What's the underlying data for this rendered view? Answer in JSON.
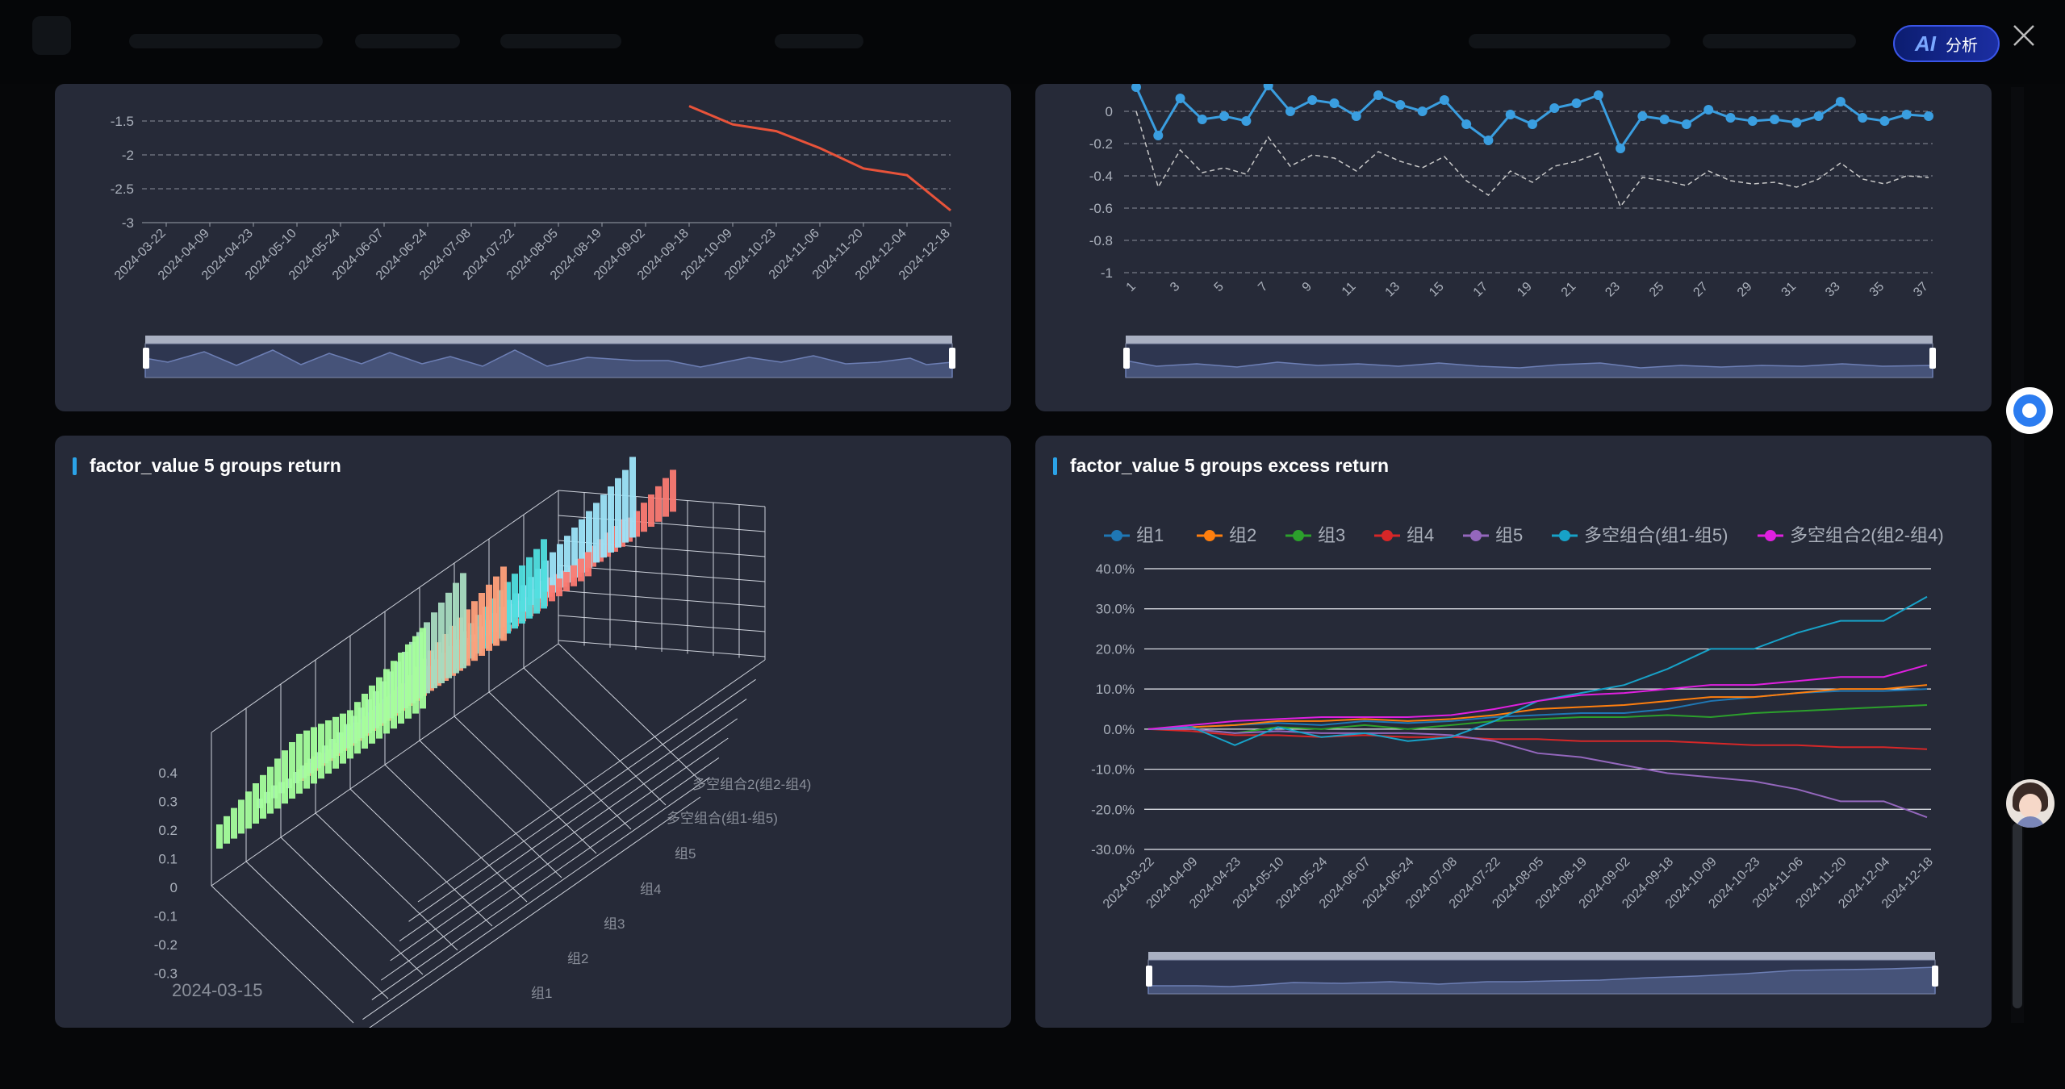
{
  "header": {
    "ai_button_icon": "AI",
    "ai_button_label": "分析",
    "close_icon": "close-icon"
  },
  "panels": {
    "top_left": {
      "y_ticks": [
        "-1.5",
        "-2",
        "-2.5",
        "-3"
      ],
      "x_ticks": [
        "2024-03-22",
        "2024-04-09",
        "2024-04-23",
        "2024-05-10",
        "2024-05-24",
        "2024-06-07",
        "2024-06-24",
        "2024-07-08",
        "2024-07-22",
        "2024-08-05",
        "2024-08-19",
        "2024-09-02",
        "2024-09-18",
        "2024-10-09",
        "2024-10-23",
        "2024-11-06",
        "2024-11-20",
        "2024-12-04",
        "2024-12-18"
      ]
    },
    "top_right": {
      "y_ticks": [
        "0",
        "-0.2",
        "-0.4",
        "-0.6",
        "-0.8",
        "-1"
      ],
      "x_ticks": [
        "1",
        "3",
        "5",
        "7",
        "9",
        "11",
        "13",
        "15",
        "17",
        "19",
        "21",
        "23",
        "25",
        "27",
        "29",
        "31",
        "33",
        "35",
        "37"
      ]
    },
    "bottom_left": {
      "title": "factor_value 5 groups return",
      "z_ticks": [
        "0.4",
        "0.3",
        "0.2",
        "0.1",
        "0",
        "-0.1",
        "-0.2",
        "-0.3"
      ],
      "series_axis": [
        "多空组合2(组2-组4)",
        "多空组合(组1-组5)",
        "组5",
        "组4",
        "组3",
        "组2",
        "组1"
      ],
      "date_label": "2024-03-15"
    },
    "bottom_right": {
      "title": "factor_value 5 groups excess return"
    }
  },
  "colors": {
    "panel_bg": "#262a38",
    "accent": "#2ba3e8",
    "top_left_line": "#e8533a",
    "top_right_line": "#3a9ee0"
  },
  "chart_data": [
    {
      "type": "line",
      "x": [
        "2024-03-22",
        "2024-04-09",
        "2024-04-23",
        "2024-05-10",
        "2024-05-24",
        "2024-06-07",
        "2024-06-24",
        "2024-07-08",
        "2024-07-22",
        "2024-08-05",
        "2024-08-19",
        "2024-09-02",
        "2024-09-18",
        "2024-10-09",
        "2024-10-23",
        "2024-11-06",
        "2024-11-20",
        "2024-12-04",
        "2024-12-18"
      ],
      "series": [
        {
          "values": [
            null,
            null,
            null,
            null,
            null,
            null,
            null,
            null,
            null,
            null,
            null,
            null,
            -1.28,
            -1.55,
            -1.65,
            -1.9,
            -2.2,
            -2.3,
            -2.82
          ]
        }
      ],
      "ylim": [
        -3,
        -1.3
      ]
    },
    {
      "type": "line",
      "x": [
        1,
        2,
        3,
        4,
        5,
        6,
        7,
        8,
        9,
        10,
        11,
        12,
        13,
        14,
        15,
        16,
        17,
        18,
        19,
        20,
        21,
        22,
        23,
        24,
        25,
        26,
        27,
        28,
        29,
        30,
        31,
        32,
        33,
        34,
        35,
        36,
        37
      ],
      "series": [
        {
          "values": [
            0.15,
            -0.15,
            0.08,
            -0.05,
            -0.03,
            -0.06,
            0.16,
            0.0,
            0.07,
            0.05,
            -0.03,
            0.1,
            0.04,
            0.0,
            0.07,
            -0.08,
            -0.18,
            -0.02,
            -0.08,
            0.02,
            0.05,
            0.1,
            -0.23,
            -0.03,
            -0.05,
            -0.08,
            0.01,
            -0.04,
            -0.06,
            -0.05,
            -0.07,
            -0.03,
            0.06,
            -0.04,
            -0.06,
            -0.02,
            -0.03
          ]
        },
        {
          "values": [
            0.0,
            -0.47,
            -0.24,
            -0.38,
            -0.35,
            -0.39,
            -0.16,
            -0.34,
            -0.27,
            -0.29,
            -0.37,
            -0.25,
            -0.31,
            -0.35,
            -0.28,
            -0.43,
            -0.52,
            -0.37,
            -0.44,
            -0.34,
            -0.31,
            -0.26,
            -0.59,
            -0.41,
            -0.43,
            -0.46,
            -0.37,
            -0.43,
            -0.45,
            -0.44,
            -0.47,
            -0.42,
            -0.32,
            -0.42,
            -0.45,
            -0.4,
            -0.41
          ]
        }
      ],
      "ylim": [
        -1,
        0.1
      ]
    },
    {
      "type": "bar",
      "categories": [
        "组1",
        "组2",
        "组3",
        "组4",
        "组5",
        "多空组合(组1-组5)",
        "多空组合2(组2-组4)"
      ],
      "zlim": [
        -0.3,
        0.4
      ]
    },
    {
      "type": "line",
      "title": "factor_value 5 groups excess return",
      "x": [
        "2024-03-22",
        "2024-04-09",
        "2024-04-23",
        "2024-05-10",
        "2024-05-24",
        "2024-06-07",
        "2024-06-24",
        "2024-07-08",
        "2024-07-22",
        "2024-08-05",
        "2024-08-19",
        "2024-09-02",
        "2024-09-18",
        "2024-10-09",
        "2024-10-23",
        "2024-11-06",
        "2024-11-20",
        "2024-12-04",
        "2024-12-18"
      ],
      "y_ticks": [
        "40.0%",
        "30.0%",
        "20.0%",
        "10.0%",
        "0.0%",
        "-10.0%",
        "-20.0%",
        "-30.0%"
      ],
      "ylim": [
        -30,
        40
      ],
      "legend_position": "top",
      "series": [
        {
          "name": "组1",
          "color": "#1f77b4",
          "values": [
            0,
            0.5,
            1,
            1.5,
            1,
            2,
            1.5,
            2,
            3,
            3.5,
            4,
            4,
            5,
            7,
            8,
            9,
            9.5,
            9.5,
            10
          ]
        },
        {
          "name": "组2",
          "color": "#ff7f0e",
          "values": [
            0,
            0.5,
            1,
            2,
            2,
            2.5,
            2,
            2.5,
            3.5,
            5,
            5.5,
            6,
            7,
            8,
            8,
            9,
            10,
            10,
            11
          ]
        },
        {
          "name": "组3",
          "color": "#2ca02c",
          "values": [
            0,
            0,
            -1,
            0.5,
            0,
            1,
            0,
            1,
            2,
            2.5,
            3,
            3,
            3.5,
            3,
            4,
            4.5,
            5,
            5.5,
            6
          ]
        },
        {
          "name": "组4",
          "color": "#d62728",
          "values": [
            0,
            -0.5,
            -1.5,
            -1.5,
            -2,
            -1.5,
            -2,
            -2,
            -2.5,
            -2.5,
            -3,
            -3,
            -3,
            -3.5,
            -4,
            -4,
            -4.5,
            -4.5,
            -5
          ]
        },
        {
          "name": "组5",
          "color": "#9467bd",
          "values": [
            0,
            0,
            -1,
            -0.5,
            -1,
            -1,
            -1,
            -1.5,
            -3,
            -6,
            -7,
            -9,
            -11,
            -12,
            -13,
            -15,
            -18,
            -18,
            -22
          ]
        },
        {
          "name": "多空组合(组1-组5)",
          "color": "#17a2c8",
          "values": [
            0,
            0.5,
            -4,
            0.5,
            -2,
            -1,
            -3,
            -2,
            2,
            7,
            9,
            11,
            15,
            20,
            20,
            24,
            27,
            27,
            33
          ]
        },
        {
          "name": "多空组合2(组2-组4)",
          "color": "#e020e0",
          "values": [
            0,
            1,
            2,
            2.5,
            3,
            3,
            3,
            3.5,
            5,
            7,
            8.5,
            9,
            10,
            11,
            11,
            12,
            13,
            13,
            16
          ]
        }
      ]
    }
  ]
}
